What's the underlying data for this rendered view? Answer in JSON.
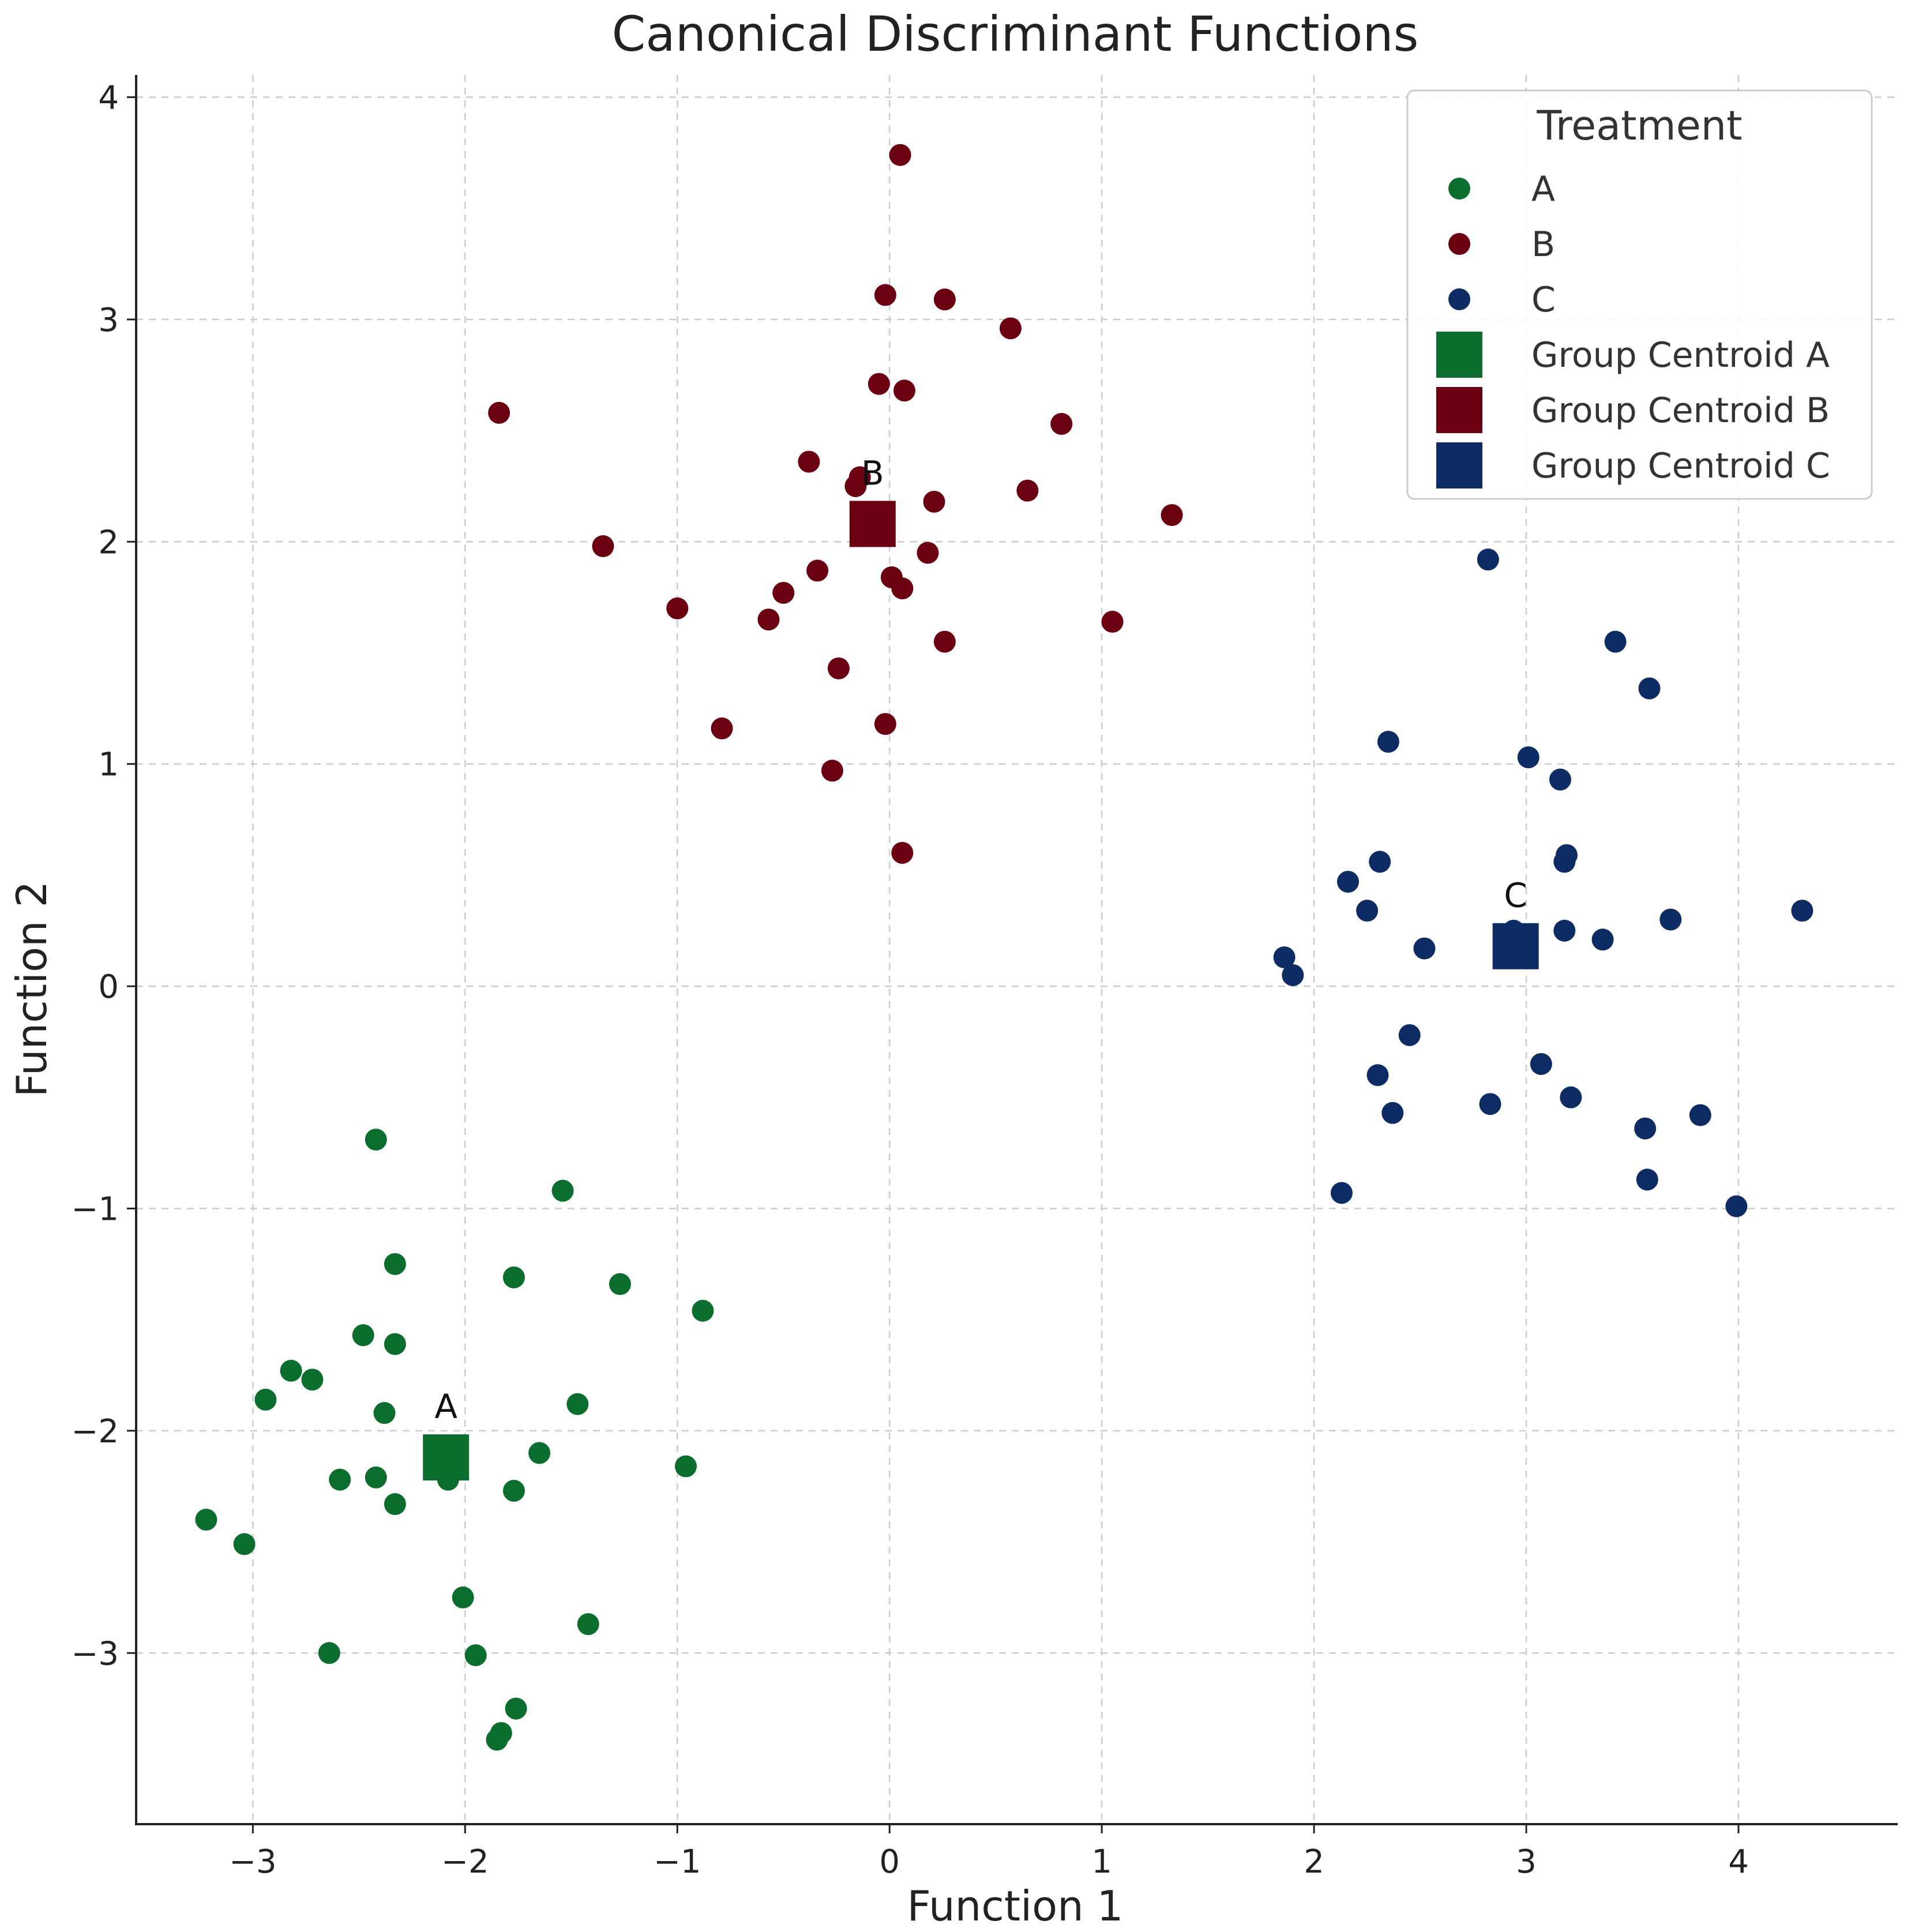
{
  "chart_data": {
    "type": "scatter",
    "title": "Canonical Discriminant Functions",
    "xlabel": "Function 1",
    "ylabel": "Function 2",
    "xlim": [
      -3.55,
      4.75
    ],
    "ylim": [
      -3.77,
      4.1
    ],
    "xticks": [
      -3,
      -2,
      -1,
      0,
      1,
      2,
      3,
      4
    ],
    "yticks": [
      -3,
      -2,
      -1,
      0,
      1,
      2,
      3,
      4
    ],
    "xtick_labels": [
      "−3",
      "−2",
      "−1",
      "0",
      "1",
      "2",
      "3",
      "4"
    ],
    "ytick_labels": [
      "−3",
      "−2",
      "−1",
      "0",
      "1",
      "2",
      "3",
      "4"
    ],
    "grid": true,
    "legend_title": "Treatment",
    "legend_position": "top-right",
    "series": [
      {
        "name": "A",
        "color": "#0b6e2e",
        "points": [
          [
            -2.42,
            -0.69
          ],
          [
            -1.54,
            -0.92
          ],
          [
            -2.33,
            -1.25
          ],
          [
            -1.77,
            -1.31
          ],
          [
            -1.27,
            -1.34
          ],
          [
            -0.88,
            -1.46
          ],
          [
            -2.48,
            -1.57
          ],
          [
            -2.33,
            -1.61
          ],
          [
            -2.82,
            -1.73
          ],
          [
            -2.72,
            -1.77
          ],
          [
            -2.94,
            -1.86
          ],
          [
            -1.47,
            -1.88
          ],
          [
            -2.38,
            -1.92
          ],
          [
            -1.65,
            -2.1
          ],
          [
            -0.96,
            -2.16
          ],
          [
            -2.59,
            -2.22
          ],
          [
            -2.42,
            -2.21
          ],
          [
            -2.08,
            -2.22
          ],
          [
            -1.77,
            -2.27
          ],
          [
            -2.33,
            -2.33
          ],
          [
            -3.22,
            -2.4
          ],
          [
            -3.04,
            -2.51
          ],
          [
            -2.01,
            -2.75
          ],
          [
            -1.42,
            -2.87
          ],
          [
            -2.64,
            -3.0
          ],
          [
            -1.95,
            -3.01
          ],
          [
            -1.76,
            -3.25
          ],
          [
            -1.83,
            -3.36
          ],
          [
            -1.85,
            -3.39
          ]
        ]
      },
      {
        "name": "B",
        "color": "#6b0010",
        "points": [
          [
            0.05,
            3.74
          ],
          [
            -0.02,
            3.11
          ],
          [
            0.26,
            3.09
          ],
          [
            0.57,
            2.96
          ],
          [
            -0.05,
            2.71
          ],
          [
            0.07,
            2.68
          ],
          [
            -1.84,
            2.58
          ],
          [
            0.81,
            2.53
          ],
          [
            -0.38,
            2.36
          ],
          [
            -0.14,
            2.29
          ],
          [
            -0.16,
            2.25
          ],
          [
            0.65,
            2.23
          ],
          [
            0.21,
            2.18
          ],
          [
            1.33,
            2.12
          ],
          [
            -1.35,
            1.98
          ],
          [
            0.18,
            1.95
          ],
          [
            -0.34,
            1.87
          ],
          [
            0.01,
            1.84
          ],
          [
            0.06,
            1.79
          ],
          [
            -0.5,
            1.77
          ],
          [
            -1.0,
            1.7
          ],
          [
            -0.57,
            1.65
          ],
          [
            1.05,
            1.64
          ],
          [
            0.26,
            1.55
          ],
          [
            -0.24,
            1.43
          ],
          [
            -0.79,
            1.16
          ],
          [
            -0.02,
            1.18
          ],
          [
            -0.27,
            0.97
          ],
          [
            0.06,
            0.6
          ]
        ]
      },
      {
        "name": "C",
        "color": "#0c2c63",
        "points": [
          [
            2.82,
            1.92
          ],
          [
            3.42,
            1.55
          ],
          [
            3.58,
            1.34
          ],
          [
            2.35,
            1.1
          ],
          [
            3.01,
            1.03
          ],
          [
            3.16,
            0.93
          ],
          [
            3.19,
            0.59
          ],
          [
            3.18,
            0.56
          ],
          [
            2.31,
            0.56
          ],
          [
            2.16,
            0.47
          ],
          [
            2.25,
            0.34
          ],
          [
            4.3,
            0.34
          ],
          [
            3.68,
            0.3
          ],
          [
            2.94,
            0.25
          ],
          [
            3.18,
            0.25
          ],
          [
            3.36,
            0.21
          ],
          [
            2.52,
            0.17
          ],
          [
            1.86,
            0.13
          ],
          [
            1.9,
            0.05
          ],
          [
            2.45,
            -0.22
          ],
          [
            3.07,
            -0.35
          ],
          [
            2.3,
            -0.4
          ],
          [
            3.21,
            -0.5
          ],
          [
            2.83,
            -0.53
          ],
          [
            2.37,
            -0.57
          ],
          [
            3.82,
            -0.58
          ],
          [
            3.56,
            -0.64
          ],
          [
            3.57,
            -0.87
          ],
          [
            2.13,
            -0.93
          ],
          [
            3.99,
            -0.99
          ]
        ]
      }
    ],
    "centroids": [
      {
        "name": "Group Centroid A",
        "label": "A",
        "x": -2.09,
        "y": -2.12,
        "color": "#0b6e2e"
      },
      {
        "name": "Group Centroid B",
        "label": "B",
        "x": -0.08,
        "y": 2.08,
        "color": "#6b0010"
      },
      {
        "name": "Group Centroid C",
        "label": "C",
        "x": 2.95,
        "y": 0.18,
        "color": "#0c2c63"
      }
    ]
  }
}
